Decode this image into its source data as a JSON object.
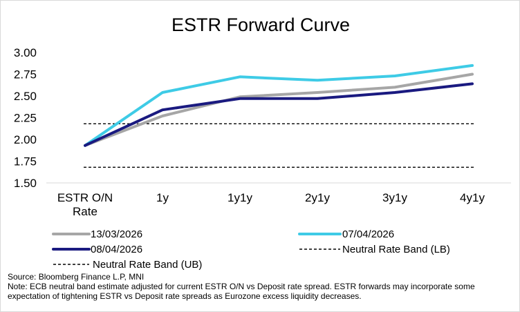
{
  "chart_data": {
    "type": "line",
    "title": "ESTR Forward Curve",
    "xlabel": "",
    "ylabel": "",
    "categories": [
      "ESTR O/N\nRate",
      "1y",
      "1y1y",
      "2y1y",
      "3y1y",
      "4y1y"
    ],
    "ylim": [
      1.5,
      3.0
    ],
    "yticks": [
      "1.50",
      "1.75",
      "2.00",
      "2.25",
      "2.50",
      "2.75",
      "3.00"
    ],
    "grid": false,
    "legend_position": "bottom",
    "series": [
      {
        "name": "13/03/2026",
        "color": "#a6a6a6",
        "style": "solid",
        "values": [
          1.93,
          2.27,
          2.49,
          2.54,
          2.6,
          2.75
        ]
      },
      {
        "name": "07/04/2026",
        "color": "#3ecbe6",
        "style": "solid",
        "values": [
          1.93,
          2.54,
          2.72,
          2.68,
          2.73,
          2.85
        ]
      },
      {
        "name": "08/04/2026",
        "color": "#1a1a80",
        "style": "solid",
        "values": [
          1.93,
          2.34,
          2.47,
          2.47,
          2.54,
          2.64
        ]
      },
      {
        "name": "Neutral Rate Band (LB)",
        "color": "#000000",
        "style": "dashed",
        "values": [
          1.68,
          1.68,
          1.68,
          1.68,
          1.68,
          1.68
        ]
      },
      {
        "name": "Neutral Rate Band (UB)",
        "color": "#000000",
        "style": "dashed",
        "values": [
          2.18,
          2.18,
          2.18,
          2.18,
          2.18,
          2.18
        ]
      }
    ]
  },
  "footnotes": {
    "source": "Source: Bloomberg Finance L.P, MNI",
    "note": "Note: ECB neutral band estimate adjusted for current ESTR O/N vs Deposit rate spread. ESTR forwards may incorporate some expectation of tightening ESTR vs Deposit rate spreads as Eurozone excess liquidity decreases."
  }
}
